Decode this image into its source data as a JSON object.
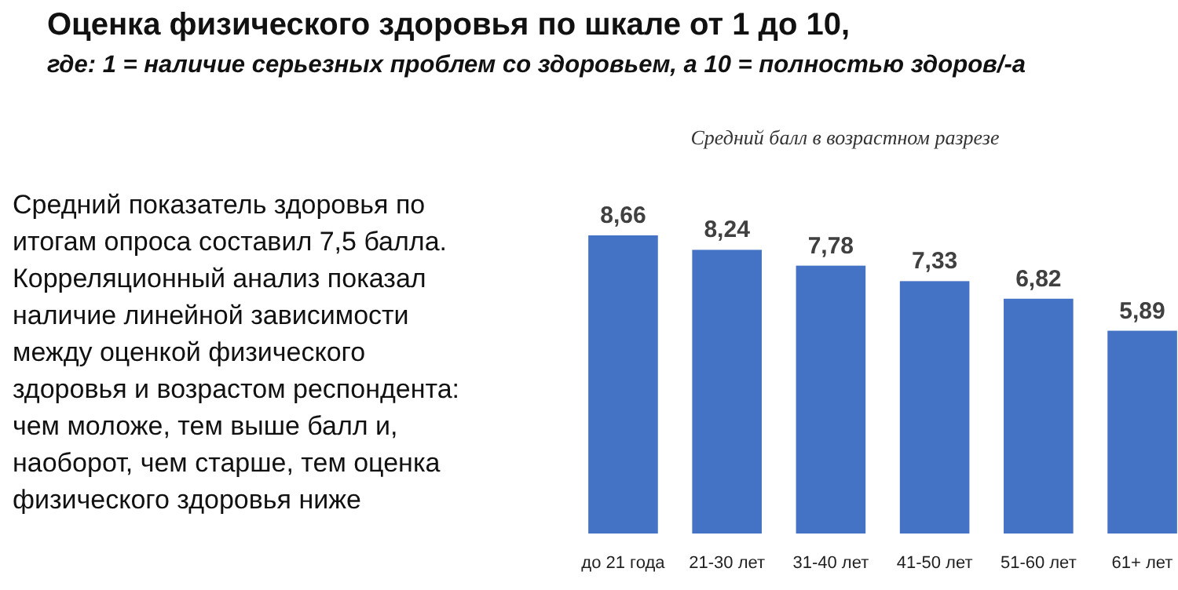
{
  "chart_data": {
    "type": "bar",
    "title": "Оценка физического здоровья по шкале от 1 до 10,",
    "subtitle": "где: 1 = наличие серьезных проблем со здоровьем, а 10 = полностью здоров/-а",
    "annotations": [
      "Средний показатель здоровья по итогам опроса составил 7,5 балла. Корреляционный анализ показал наличие линейной зависимости между оценкой физического здоровья и возрастом респондента: чем моложе, тем выше балл и, наоборот, чем старше, тем оценка физического здоровья ниже",
      "Средний балл в возрастном разрезе"
    ],
    "categories": [
      "до 21 года",
      "21-30 лет",
      "31-40 лет",
      "41-50 лет",
      "51-60 лет",
      "61+ лет"
    ],
    "values": [
      8.66,
      8.24,
      7.78,
      7.33,
      6.82,
      5.89
    ],
    "value_labels": [
      "8,66",
      "8,24",
      "7,78",
      "7,33",
      "6,82",
      "5,89"
    ],
    "color": "#4472c4"
  }
}
